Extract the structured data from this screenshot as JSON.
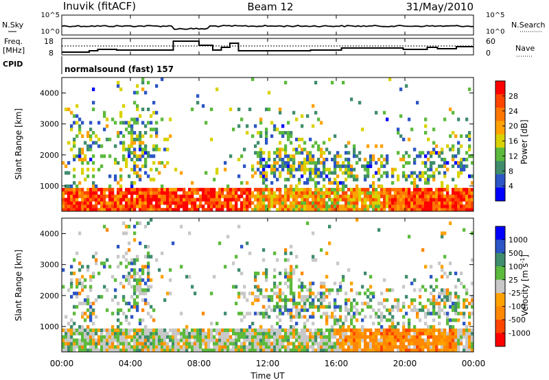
{
  "header": {
    "station": "Inuvik  (fitACF)",
    "beam": "Beam 12",
    "date": "31/May/2010"
  },
  "status_panels": {
    "nsky_label": "N.Sky",
    "nsky_ticks": [
      "10^5",
      "10^0"
    ],
    "nsearch_label": "N.Search",
    "nsearch_ticks": [
      "10^5",
      "10^0"
    ],
    "freq_label_line1": "Freq.",
    "freq_label_line2": "[MHz]",
    "freq_ticks": [
      "18",
      "8"
    ],
    "nave_label": "Nave",
    "nave_ticks": [
      "60",
      "0"
    ],
    "cpid_label": "CPID",
    "cpid_text": "normalsound (fast) 157"
  },
  "colors": {
    "power_scale": [
      "#0000ff",
      "#2c55c5",
      "#3f8d6c",
      "#5cba3c",
      "#d9d200",
      "#ffa200",
      "#ff7700",
      "#ff4400",
      "#ff0000"
    ],
    "velocity_scale": [
      "#ff0000",
      "#ff4400",
      "#ff8800",
      "#ffa200",
      "#c8c8c8",
      "#5cba3c",
      "#3f8d6c",
      "#2c55c5",
      "#0000ff"
    ],
    "frame": "#000000"
  },
  "chart_data": [
    {
      "type": "heatmap",
      "title": "Power",
      "ylabel": "Slant Range [km]",
      "xlabel": "",
      "ylim": [
        180,
        4500
      ],
      "xlim": [
        0,
        24
      ],
      "yticks": [
        "1000",
        "2000",
        "3000",
        "4000"
      ],
      "colorbar_label": "Power [dB]",
      "colorbar_ticks": [
        "4",
        "8",
        "12",
        "16",
        "20",
        "24",
        "28"
      ],
      "colorbar_range": [
        0,
        30
      ]
    },
    {
      "type": "heatmap",
      "title": "Velocity",
      "ylabel": "Slant Range [km]",
      "xlabel": "Time UT",
      "ylim": [
        180,
        4500
      ],
      "xlim": [
        0,
        24
      ],
      "yticks": [
        "1000",
        "2000",
        "3000",
        "4000"
      ],
      "xticks": [
        "00:00",
        "04:00",
        "08:00",
        "12:00",
        "16:00",
        "20:00",
        "00:00"
      ],
      "colorbar_label": "Velocity [m s",
      "colorbar_label_sup": "-1",
      "colorbar_label_end": "]",
      "colorbar_ticks": [
        "1000",
        "500",
        "100",
        "25",
        "-25",
        "-100",
        "-500",
        "-1000"
      ]
    }
  ]
}
